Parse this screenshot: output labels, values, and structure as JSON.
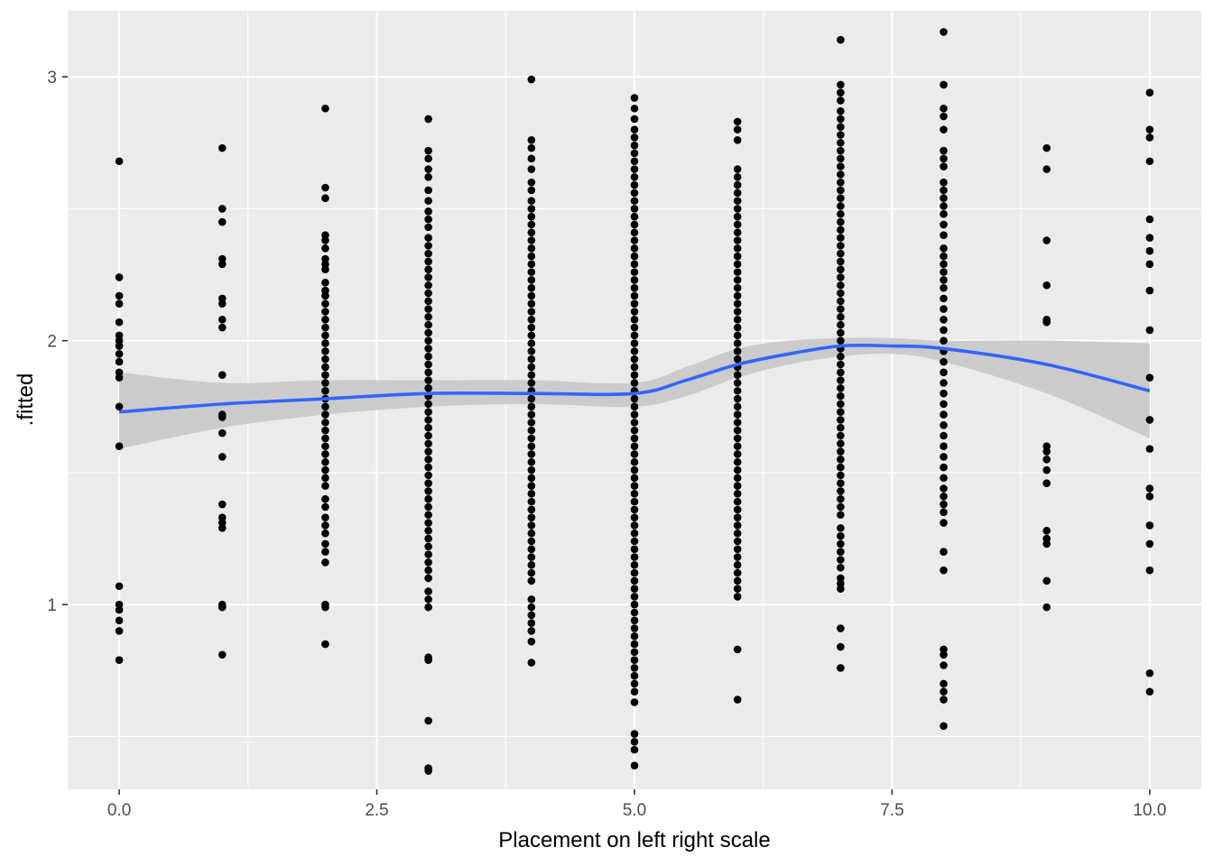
{
  "chart_data": {
    "type": "scatter",
    "title": "",
    "xlabel": "Placement on left right scale",
    "ylabel": ".fitted",
    "xlim": [
      -0.5,
      10.5
    ],
    "ylim": [
      0.3,
      3.25
    ],
    "x_ticks": [
      0,
      2.5,
      5,
      7.5,
      10
    ],
    "x_tick_labels": [
      "0.0",
      "2.5",
      "5.0",
      "7.5",
      "10.0"
    ],
    "y_ticks": [
      1,
      2,
      3
    ],
    "y_tick_labels": [
      "1",
      "2",
      "3"
    ],
    "grid": true,
    "legend": "none",
    "colors": {
      "panel": "#ebebeb",
      "grid": "#ffffff",
      "point": "#000000",
      "smooth_line": "#3366ff",
      "smooth_band": "#c8c8c8"
    },
    "points": [
      {
        "x": 0,
        "y": [
          2.68,
          2.24,
          2.17,
          2.14,
          2.07,
          2.02,
          2.0,
          1.98,
          1.95,
          1.92,
          1.88,
          1.86,
          1.75,
          1.6,
          1.07,
          1.0,
          0.98,
          0.94,
          0.9,
          0.79
        ]
      },
      {
        "x": 1,
        "y": [
          2.73,
          2.5,
          2.45,
          2.31,
          2.29,
          2.16,
          2.14,
          2.08,
          2.05,
          1.87,
          1.72,
          1.71,
          1.65,
          1.56,
          1.38,
          1.33,
          1.31,
          1.29,
          1.0,
          0.99,
          0.81
        ]
      },
      {
        "x": 2,
        "y": [
          2.88,
          2.58,
          2.54,
          2.4,
          2.38,
          2.35,
          2.31,
          2.29,
          2.27,
          2.22,
          2.19,
          2.17,
          2.14,
          2.11,
          2.08,
          2.05,
          2.02,
          1.99,
          1.96,
          1.93,
          1.9,
          1.87,
          1.84,
          1.81,
          1.78,
          1.75,
          1.72,
          1.69,
          1.66,
          1.63,
          1.6,
          1.57,
          1.54,
          1.51,
          1.48,
          1.45,
          1.4,
          1.37,
          1.33,
          1.3,
          1.27,
          1.23,
          1.2,
          1.16,
          1.0,
          0.99,
          0.85
        ]
      },
      {
        "x": 3,
        "y": [
          2.84,
          2.72,
          2.69,
          2.65,
          2.62,
          2.57,
          2.53,
          2.49,
          2.46,
          2.43,
          2.39,
          2.36,
          2.33,
          2.3,
          2.27,
          2.24,
          2.21,
          2.18,
          2.15,
          2.12,
          2.09,
          2.06,
          2.03,
          2.0,
          1.97,
          1.94,
          1.91,
          1.88,
          1.85,
          1.82,
          1.79,
          1.76,
          1.73,
          1.7,
          1.67,
          1.64,
          1.61,
          1.58,
          1.55,
          1.52,
          1.49,
          1.46,
          1.43,
          1.4,
          1.37,
          1.34,
          1.31,
          1.28,
          1.25,
          1.22,
          1.19,
          1.16,
          1.13,
          1.1,
          1.05,
          1.02,
          0.99,
          0.8,
          0.79,
          0.56,
          0.38,
          0.37
        ]
      },
      {
        "x": 4,
        "y": [
          2.99,
          2.76,
          2.73,
          2.69,
          2.65,
          2.6,
          2.57,
          2.53,
          2.5,
          2.47,
          2.44,
          2.41,
          2.38,
          2.35,
          2.32,
          2.29,
          2.26,
          2.23,
          2.2,
          2.17,
          2.14,
          2.11,
          2.08,
          2.05,
          2.02,
          1.99,
          1.96,
          1.93,
          1.9,
          1.87,
          1.84,
          1.81,
          1.78,
          1.75,
          1.72,
          1.69,
          1.66,
          1.63,
          1.6,
          1.57,
          1.54,
          1.51,
          1.48,
          1.45,
          1.42,
          1.39,
          1.36,
          1.33,
          1.3,
          1.27,
          1.24,
          1.21,
          1.18,
          1.15,
          1.12,
          1.09,
          1.02,
          0.99,
          0.96,
          0.93,
          0.9,
          0.86,
          0.78
        ]
      },
      {
        "x": 5,
        "y": [
          2.92,
          2.88,
          2.84,
          2.8,
          2.77,
          2.74,
          2.71,
          2.68,
          2.65,
          2.62,
          2.59,
          2.56,
          2.53,
          2.5,
          2.47,
          2.44,
          2.41,
          2.38,
          2.35,
          2.32,
          2.29,
          2.26,
          2.23,
          2.2,
          2.17,
          2.14,
          2.11,
          2.08,
          2.05,
          2.02,
          1.99,
          1.96,
          1.93,
          1.9,
          1.87,
          1.84,
          1.81,
          1.78,
          1.75,
          1.72,
          1.69,
          1.66,
          1.63,
          1.6,
          1.57,
          1.54,
          1.51,
          1.48,
          1.45,
          1.42,
          1.39,
          1.36,
          1.33,
          1.3,
          1.27,
          1.24,
          1.21,
          1.18,
          1.15,
          1.12,
          1.09,
          1.06,
          1.03,
          1.0,
          0.97,
          0.94,
          0.91,
          0.88,
          0.85,
          0.82,
          0.79,
          0.76,
          0.73,
          0.7,
          0.67,
          0.63,
          0.51,
          0.48,
          0.45,
          0.39
        ]
      },
      {
        "x": 6,
        "y": [
          2.83,
          2.8,
          2.76,
          2.65,
          2.62,
          2.59,
          2.56,
          2.53,
          2.5,
          2.47,
          2.44,
          2.41,
          2.38,
          2.35,
          2.32,
          2.29,
          2.26,
          2.23,
          2.2,
          2.17,
          2.14,
          2.11,
          2.08,
          2.05,
          2.02,
          1.99,
          1.96,
          1.93,
          1.9,
          1.87,
          1.84,
          1.81,
          1.78,
          1.75,
          1.72,
          1.69,
          1.66,
          1.63,
          1.6,
          1.57,
          1.54,
          1.51,
          1.48,
          1.45,
          1.42,
          1.39,
          1.36,
          1.33,
          1.3,
          1.27,
          1.24,
          1.21,
          1.18,
          1.15,
          1.12,
          1.09,
          1.06,
          1.03,
          0.83,
          0.64
        ]
      },
      {
        "x": 7,
        "y": [
          3.14,
          2.97,
          2.94,
          2.91,
          2.87,
          2.84,
          2.81,
          2.78,
          2.75,
          2.72,
          2.69,
          2.66,
          2.63,
          2.6,
          2.57,
          2.54,
          2.51,
          2.48,
          2.45,
          2.42,
          2.39,
          2.36,
          2.33,
          2.3,
          2.27,
          2.24,
          2.21,
          2.18,
          2.15,
          2.12,
          2.09,
          2.06,
          2.03,
          2.0,
          1.97,
          1.94,
          1.91,
          1.88,
          1.85,
          1.82,
          1.79,
          1.76,
          1.73,
          1.7,
          1.67,
          1.64,
          1.61,
          1.58,
          1.55,
          1.52,
          1.49,
          1.46,
          1.43,
          1.4,
          1.37,
          1.34,
          1.29,
          1.26,
          1.23,
          1.2,
          1.17,
          1.14,
          1.1,
          1.08,
          1.06,
          0.91,
          0.84,
          0.76
        ]
      },
      {
        "x": 8,
        "y": [
          3.17,
          2.97,
          2.88,
          2.85,
          2.8,
          2.72,
          2.69,
          2.66,
          2.6,
          2.57,
          2.54,
          2.51,
          2.48,
          2.44,
          2.4,
          2.35,
          2.32,
          2.29,
          2.26,
          2.23,
          2.2,
          2.16,
          2.12,
          2.08,
          2.04,
          2.0,
          1.96,
          1.92,
          1.88,
          1.84,
          1.8,
          1.76,
          1.72,
          1.68,
          1.64,
          1.6,
          1.56,
          1.52,
          1.48,
          1.44,
          1.41,
          1.38,
          1.35,
          1.31,
          1.2,
          1.13,
          0.83,
          0.81,
          0.77,
          0.7,
          0.67,
          0.64,
          0.54
        ]
      },
      {
        "x": 9,
        "y": [
          2.73,
          2.65,
          2.38,
          2.21,
          2.08,
          2.07,
          1.6,
          1.58,
          1.55,
          1.51,
          1.46,
          1.28,
          1.25,
          1.23,
          1.09,
          0.99
        ]
      },
      {
        "x": 10,
        "y": [
          2.94,
          2.8,
          2.77,
          2.68,
          2.46,
          2.39,
          2.34,
          2.29,
          2.19,
          2.04,
          1.86,
          1.7,
          1.59,
          1.44,
          1.41,
          1.3,
          1.23,
          1.13,
          0.74,
          0.67
        ]
      }
    ],
    "smooth": {
      "x": [
        0,
        1,
        2,
        3,
        4,
        5,
        5.5,
        6,
        6.5,
        7,
        7.5,
        8,
        9,
        10
      ],
      "y": [
        1.73,
        1.76,
        1.78,
        1.8,
        1.8,
        1.8,
        1.85,
        1.91,
        1.95,
        1.98,
        1.98,
        1.97,
        1.91,
        1.81
      ],
      "lower": [
        1.59,
        1.67,
        1.72,
        1.75,
        1.76,
        1.75,
        1.79,
        1.86,
        1.91,
        1.94,
        1.95,
        1.92,
        1.8,
        1.63
      ],
      "upper": [
        1.88,
        1.84,
        1.85,
        1.85,
        1.85,
        1.84,
        1.9,
        1.97,
        2.0,
        2.01,
        2.01,
        2.0,
        2.0,
        1.99
      ]
    }
  }
}
